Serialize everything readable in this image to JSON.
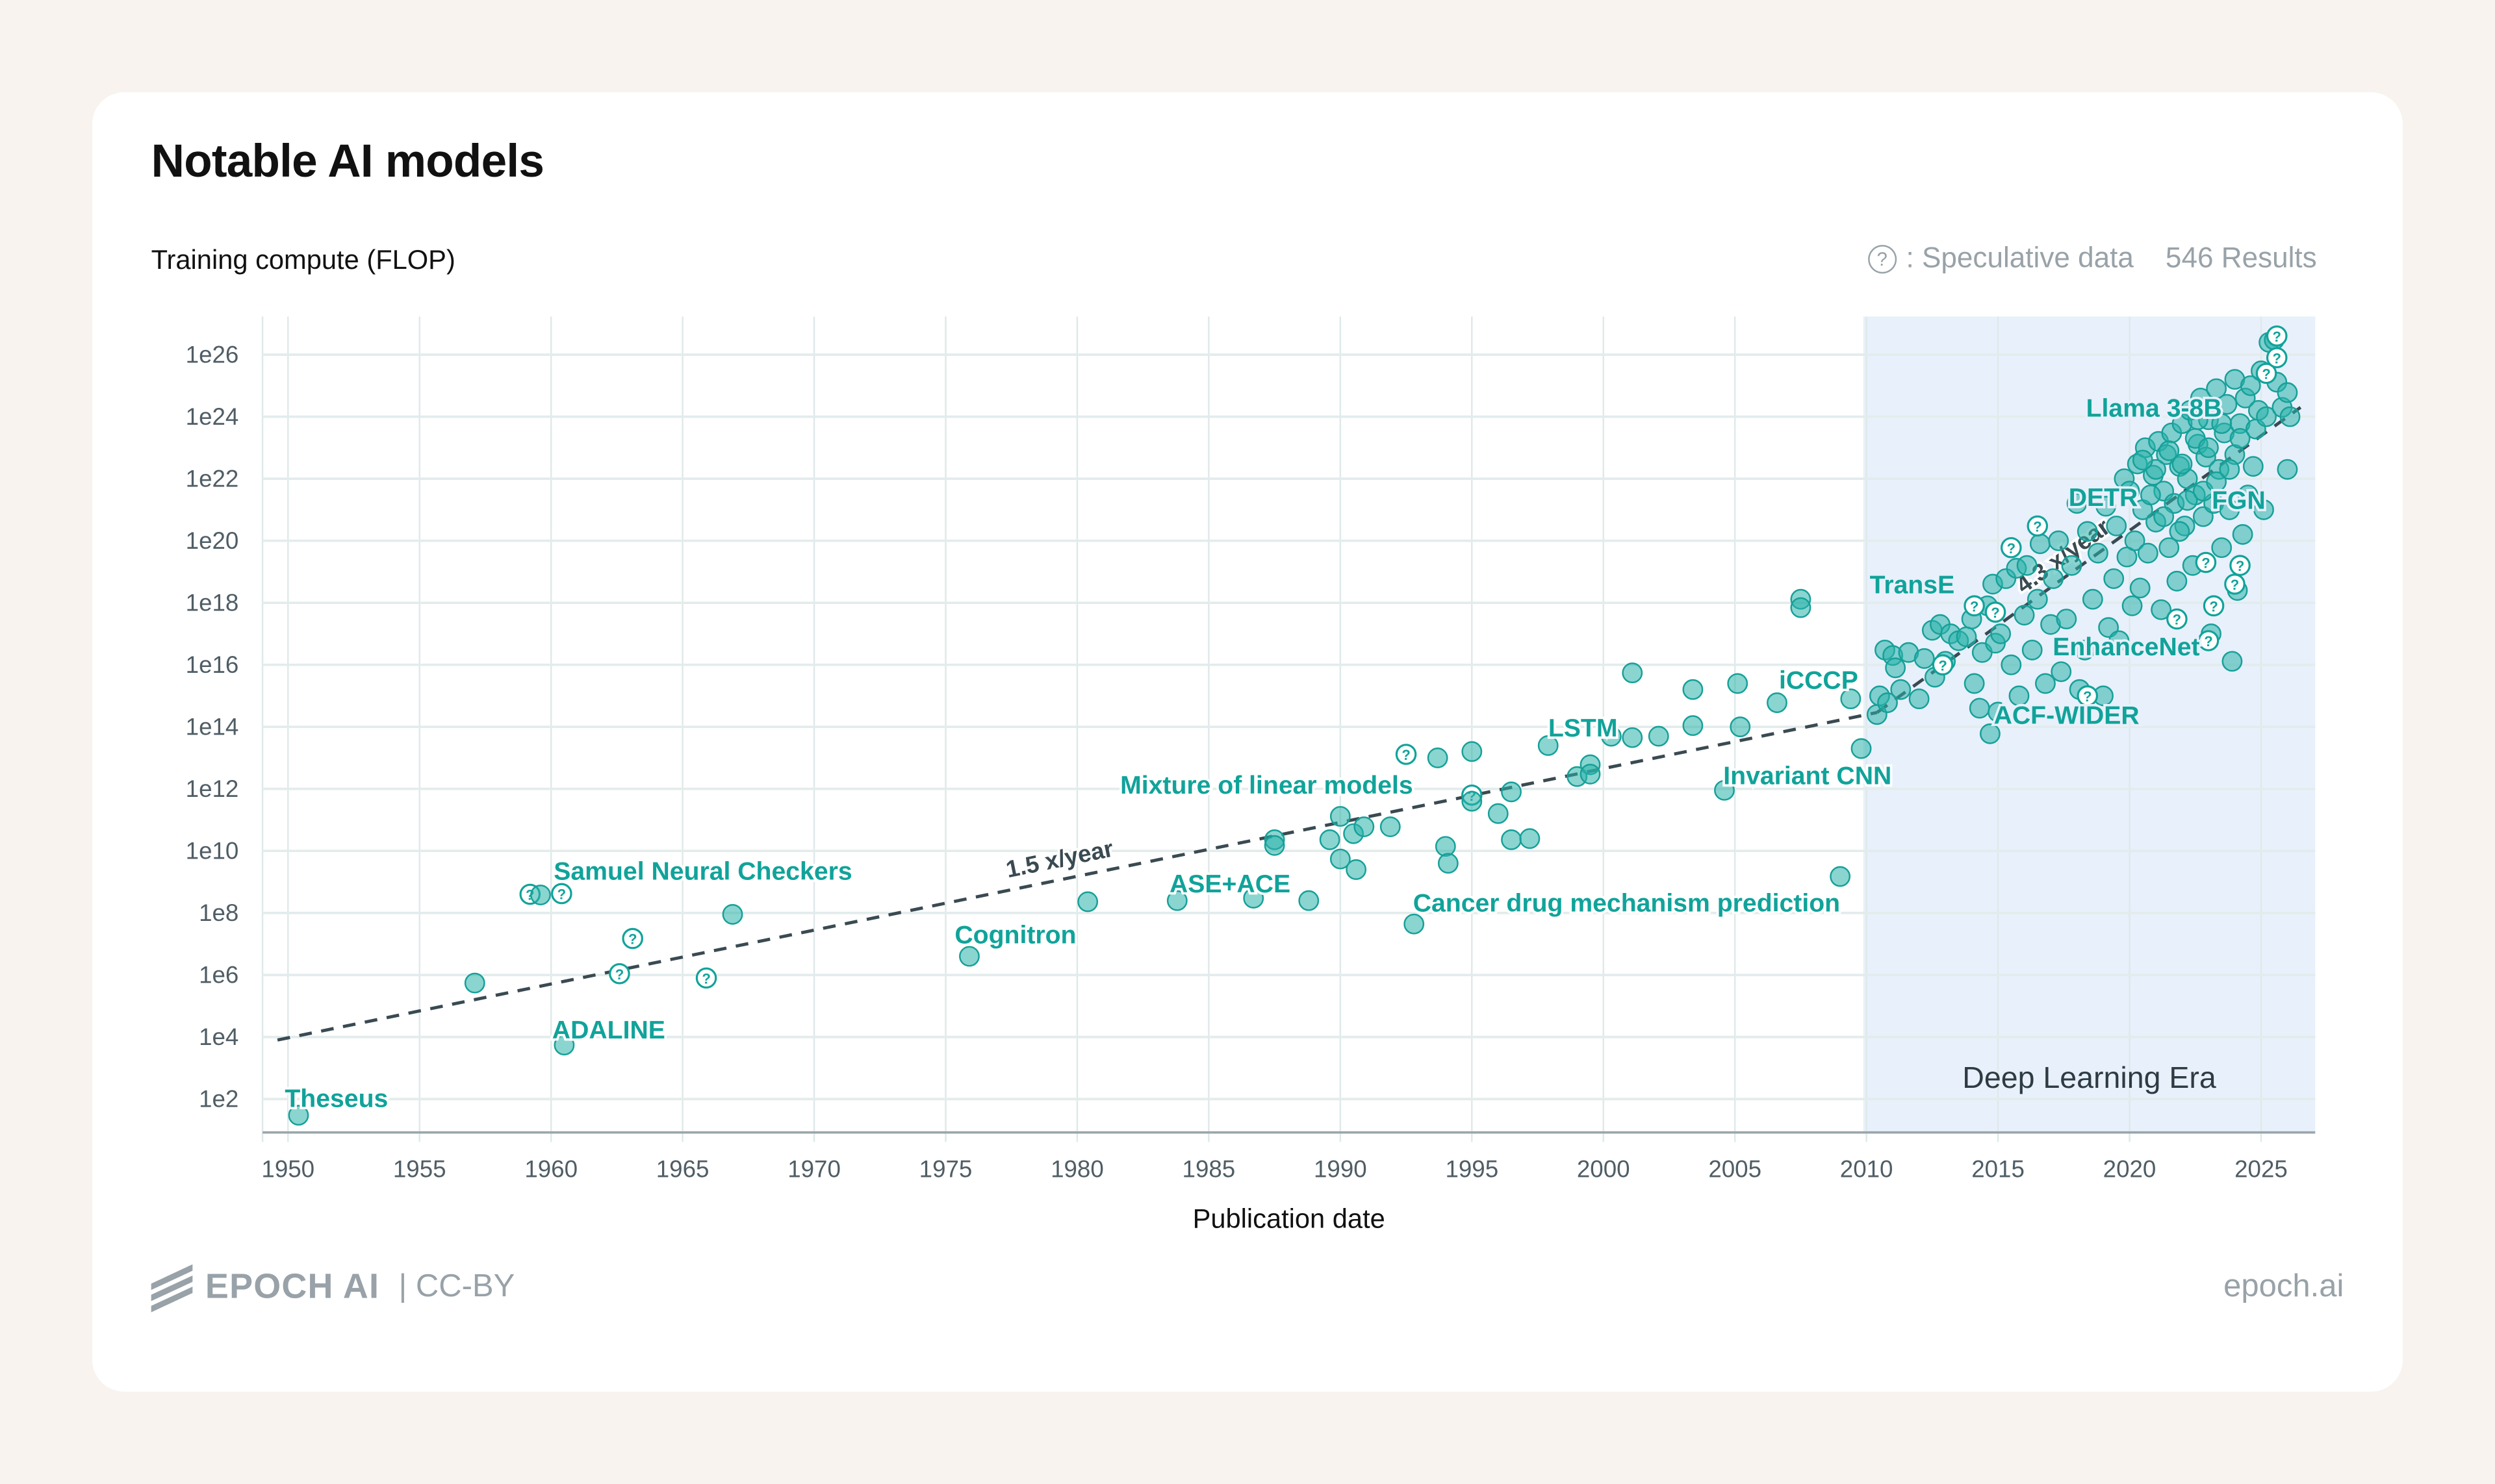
{
  "title": "Notable AI models",
  "y_axis_label": "Training compute (FLOP)",
  "legend": {
    "speculative_icon": "question-circle-icon",
    "speculative_label": ": Speculative data",
    "results": "546 Results"
  },
  "footer": {
    "brand": "EPOCH AI",
    "license": "| CC-BY",
    "site": "epoch.ai"
  },
  "colors": {
    "point": "#2ab2aa",
    "label": "#10a39a",
    "era_shade": "#e8f0fb",
    "trend": "#3a4a52",
    "background": "#f8f3ee"
  },
  "chart_data": {
    "type": "scatter",
    "xlabel": "Publication date",
    "ylabel": "Training compute (FLOP)",
    "yscale": "log",
    "xlim": [
      1949,
      2027
    ],
    "ylim": [
      10.0,
      1e+27
    ],
    "grid": true,
    "x_ticks": [
      "1950",
      "1955",
      "1960",
      "1965",
      "1970",
      "1975",
      "1980",
      "1985",
      "1990",
      "1995",
      "2000",
      "2005",
      "2010",
      "2015",
      "2020",
      "2025"
    ],
    "y_ticks": [
      "1e2",
      "1e4",
      "1e6",
      "1e8",
      "1e10",
      "1e12",
      "1e14",
      "1e16",
      "1e18",
      "1e20",
      "1e22",
      "1e24",
      "1e26"
    ],
    "era": {
      "label": "Deep Learning Era",
      "start": 2010,
      "end": 2027
    },
    "trends": [
      {
        "label": "1.5 x/year",
        "start": [
          1949.6,
          8000.0
        ],
        "end": [
          2010.4,
          290000000000000.0
        ]
      },
      {
        "label": "4.3 x/year",
        "start": [
          2010.4,
          290000000000000.0
        ],
        "end": [
          2026.5,
          2e+24
        ]
      }
    ],
    "annotations": [
      "Theseus",
      "ADALINE",
      "Samuel Neural Checkers",
      "Cognitron",
      "ASE+ACE",
      "Mixture of linear models",
      "Cancer drug mechanism prediction",
      "LSTM",
      "Invariant CNN",
      "iCCCP",
      "TransE",
      "ACF-WIDER",
      "EnhanceNet",
      "DETR",
      "FGN",
      "Llama 3-8B"
    ],
    "points": [
      [
        1950.4,
        30.0,
        0
      ],
      [
        1957.1,
        550000.0,
        0
      ],
      [
        1959.2,
        400000000.0,
        1
      ],
      [
        1959.6,
        380000000.0,
        0
      ],
      [
        1960.4,
        420000000.0,
        1
      ],
      [
        1960.5,
        5500.0,
        0
      ],
      [
        1962.6,
        1100000.0,
        1
      ],
      [
        1963.1,
        15000000.0,
        1
      ],
      [
        1965.9,
        800000.0,
        1
      ],
      [
        1966.9,
        90000000.0,
        0
      ],
      [
        1975.9,
        4000000.0,
        0
      ],
      [
        1980.4,
        230000000.0,
        0
      ],
      [
        1983.8,
        250000000.0,
        0
      ],
      [
        1986.7,
        300000000.0,
        0
      ],
      [
        1987.5,
        23000000000.0,
        0
      ],
      [
        1987.5,
        15000000000.0,
        0
      ],
      [
        1988.8,
        250000000.0,
        0
      ],
      [
        1989.6,
        23000000000.0,
        0
      ],
      [
        1990.0,
        130000000000.0,
        0
      ],
      [
        1990.0,
        5500000000.0,
        0
      ],
      [
        1990.6,
        2500000000.0,
        0
      ],
      [
        1990.5,
        36000000000.0,
        0
      ],
      [
        1990.9,
        60000000000.0,
        0
      ],
      [
        1991.9,
        60000000000.0,
        0
      ],
      [
        1992.5,
        13000000000000.0,
        1
      ],
      [
        1993.7,
        10000000000000.0,
        0
      ],
      [
        1994.0,
        14000000000.0,
        0
      ],
      [
        1994.1,
        4000000000.0,
        0
      ],
      [
        1992.8,
        44000000.0,
        0
      ],
      [
        1995.0,
        16000000000000.0,
        0
      ],
      [
        1995.0,
        630000000000.0,
        1
      ],
      [
        1995.0,
        400000000000.0,
        0
      ],
      [
        1996.0,
        160000000000.0,
        0
      ],
      [
        1996.5,
        800000000000.0,
        0
      ],
      [
        1996.5,
        23000000000.0,
        0
      ],
      [
        1997.2,
        25000000000.0,
        0
      ],
      [
        1997.9,
        25000000000000.0,
        0
      ],
      [
        1999.0,
        2500000000000.0,
        0
      ],
      [
        1999.5,
        6000000000000.0,
        0
      ],
      [
        1999.5,
        3000000000000.0,
        0
      ],
      [
        2000.3,
        50000000000000.0,
        0
      ],
      [
        2001.1,
        5500000000000000.0,
        0
      ],
      [
        2001.1,
        45000000000000.0,
        0
      ],
      [
        2002.1,
        50000000000000.0,
        0
      ],
      [
        2003.4,
        1600000000000000.0,
        0
      ],
      [
        2003.4,
        110000000000000.0,
        0
      ],
      [
        2004.6,
        900000000000.0,
        0
      ],
      [
        2005.1,
        2500000000000000.0,
        0
      ],
      [
        2005.2,
        100000000000000.0,
        0
      ],
      [
        2006.6,
        600000000000000.0,
        0
      ],
      [
        2007.5,
        1.3e+18,
        0
      ],
      [
        2007.5,
        7e+17,
        0
      ],
      [
        2009.0,
        1500000000.0,
        0
      ],
      [
        2009.4,
        800000000000000.0,
        0
      ],
      [
        2009.8,
        20000000000000.0,
        0
      ],
      [
        2010.4,
        250000000000000.0,
        0
      ],
      [
        2010.5,
        1000000000000000.0,
        0
      ],
      [
        2010.7,
        3e+16,
        0
      ],
      [
        2010.8,
        600000000000000.0,
        0
      ],
      [
        2011.0,
        2e+16,
        0
      ],
      [
        2011.1,
        8000000000000000.0,
        0
      ],
      [
        2011.3,
        1600000000000000.0,
        0
      ],
      [
        2011.6,
        2.5e+16,
        0
      ],
      [
        2012.0,
        800000000000000.0,
        0
      ],
      [
        2012.2,
        1.6e+16,
        0
      ],
      [
        2012.5,
        1.3e+17,
        0
      ],
      [
        2012.6,
        4000000000000000.0,
        0
      ],
      [
        2012.8,
        2e+17,
        0
      ],
      [
        2013.0,
        1.3e+16,
        0
      ],
      [
        2013.2,
        1e+17,
        0
      ],
      [
        2013.5,
        6e+16,
        0
      ],
      [
        2013.8,
        8e+16,
        0
      ],
      [
        2014.0,
        3e+17,
        0
      ],
      [
        2014.1,
        2500000000000000.0,
        0
      ],
      [
        2014.3,
        400000000000000.0,
        0
      ],
      [
        2014.4,
        2.5e+16,
        0
      ],
      [
        2014.6,
        8e+17,
        0
      ],
      [
        2014.7,
        60000000000000.0,
        0
      ],
      [
        2014.8,
        4e+18,
        0
      ],
      [
        2014.9,
        5e+16,
        0
      ],
      [
        2015.0,
        300000000000000.0,
        0
      ],
      [
        2015.1,
        1e+17,
        0
      ],
      [
        2015.3,
        6e+18,
        0
      ],
      [
        2015.5,
        1e+16,
        0
      ],
      [
        2015.7,
        1.3e+19,
        0
      ],
      [
        2015.8,
        1000000000000000.0,
        0
      ],
      [
        2016.0,
        4e+17,
        0
      ],
      [
        2016.1,
        1.6e+19,
        0
      ],
      [
        2016.3,
        3e+16,
        0
      ],
      [
        2016.5,
        1.3e+18,
        0
      ],
      [
        2016.6,
        8e+19,
        0
      ],
      [
        2016.8,
        2500000000000000.0,
        0
      ],
      [
        2017.0,
        2e+17,
        0
      ],
      [
        2017.1,
        6e+18,
        0
      ],
      [
        2017.3,
        1e+20,
        0
      ],
      [
        2017.4,
        6000000000000000.0,
        0
      ],
      [
        2017.6,
        3e+17,
        0
      ],
      [
        2017.8,
        1.6e+19,
        0
      ],
      [
        2018.0,
        1.6e+21,
        0
      ],
      [
        2018.1,
        1600000000000000.0,
        0
      ],
      [
        2018.3,
        3e+16,
        0
      ],
      [
        2018.4,
        2e+20,
        0
      ],
      [
        2018.6,
        1.3e+18,
        0
      ],
      [
        2018.8,
        4e+19,
        0
      ],
      [
        2019.0,
        1000000000000000.0,
        0
      ],
      [
        2019.1,
        1.3e+21,
        0
      ],
      [
        2019.2,
        1.6e+17,
        0
      ],
      [
        2019.4,
        6e+18,
        0
      ],
      [
        2019.5,
        3e+20,
        0
      ],
      [
        2019.6,
        6e+16,
        0
      ],
      [
        2019.8,
        1e+22,
        0
      ],
      [
        2019.9,
        3e+19,
        0
      ],
      [
        2020.0,
        4e+21,
        0
      ],
      [
        2020.1,
        8e+17,
        0
      ],
      [
        2020.2,
        1e+20,
        0
      ],
      [
        2020.3,
        3e+22,
        0
      ],
      [
        2020.4,
        3e+18,
        0
      ],
      [
        2020.5,
        1e+21,
        0
      ],
      [
        2020.6,
        1e+23,
        0
      ],
      [
        2020.7,
        4e+19,
        0
      ],
      [
        2020.9,
        1.3e+22,
        0
      ],
      [
        2021.0,
        4e+20,
        0
      ],
      [
        2021.1,
        1.6e+23,
        0
      ],
      [
        2021.2,
        6e+17,
        0
      ],
      [
        2021.3,
        4e+21,
        0
      ],
      [
        2021.4,
        6e+22,
        0
      ],
      [
        2021.5,
        6e+19,
        0
      ],
      [
        2021.6,
        3e+23,
        0
      ],
      [
        2021.7,
        1.6e+21,
        0
      ],
      [
        2021.8,
        5e+18,
        0
      ],
      [
        2021.9,
        2.5e+22,
        0
      ],
      [
        2022.0,
        6e+23,
        0
      ],
      [
        2022.1,
        3e+20,
        0
      ],
      [
        2022.2,
        1e+22,
        0
      ],
      [
        2022.3,
        1.6e+24,
        0
      ],
      [
        2022.4,
        1.6e+19,
        0
      ],
      [
        2022.5,
        3e+21,
        0
      ],
      [
        2022.6,
        1.3e+23,
        0
      ],
      [
        2022.7,
        4e+24,
        0
      ],
      [
        2022.8,
        6e+20,
        0
      ],
      [
        2022.9,
        5e+22,
        0
      ],
      [
        2023.0,
        8e+23,
        0
      ],
      [
        2023.1,
        1e+17,
        0
      ],
      [
        2023.2,
        1.6e+21,
        0
      ],
      [
        2023.3,
        8e+24,
        0
      ],
      [
        2023.4,
        2e+22,
        0
      ],
      [
        2023.5,
        6e+19,
        0
      ],
      [
        2023.6,
        3e+23,
        0
      ],
      [
        2023.7,
        2.5e+24,
        0
      ],
      [
        2023.8,
        1e+21,
        0
      ],
      [
        2023.9,
        1.3e+16,
        0
      ],
      [
        2024.0,
        6e+22,
        0
      ],
      [
        2024.0,
        1.6e+25,
        0
      ],
      [
        2024.1,
        2.5e+18,
        0
      ],
      [
        2024.2,
        6e+23,
        0
      ],
      [
        2024.3,
        1.6e+20,
        0
      ],
      [
        2024.4,
        4e+24,
        0
      ],
      [
        2024.5,
        3e+21,
        0
      ],
      [
        2024.6,
        1e+25,
        0
      ],
      [
        2024.7,
        2.5e+22,
        0
      ],
      [
        2024.8,
        4e+23,
        0
      ],
      [
        2024.9,
        1.6e+24,
        0
      ],
      [
        2025.0,
        3e+25,
        0
      ],
      [
        2025.1,
        1e+21,
        0
      ],
      [
        2025.2,
        1e+24,
        0
      ],
      [
        2025.3,
        2.5e+26,
        0
      ],
      [
        2025.5,
        3e+26,
        0
      ],
      [
        2025.6,
        1.3e+25,
        0
      ],
      [
        2025.8,
        2e+24,
        0
      ],
      [
        2026.0,
        6e+24,
        0
      ],
      [
        2026.0,
        2e+22,
        0
      ],
      [
        2026.1,
        1e+24,
        0
      ],
      [
        2021.0,
        2e+22,
        0
      ],
      [
        2021.5,
        8e+22,
        0
      ],
      [
        2022.0,
        3e+22,
        0
      ],
      [
        2022.5,
        2e+23,
        0
      ],
      [
        2023.0,
        1e+23,
        0
      ],
      [
        2023.5,
        6e+23,
        0
      ],
      [
        2020.8,
        3e+21,
        0
      ],
      [
        2021.3,
        6e+20,
        0
      ],
      [
        2022.2,
        2e+21,
        0
      ],
      [
        2022.8,
        4e+21,
        0
      ],
      [
        2023.3,
        8e+21,
        0
      ],
      [
        2024.2,
        2e+23,
        0
      ],
      [
        2021.9,
        2e+20,
        0
      ],
      [
        2023.8,
        2e+22,
        0
      ],
      [
        2020.5,
        4e+22,
        0
      ],
      [
        2022.6,
        8e+23,
        0
      ],
      [
        2012.9,
        1e+16,
        1
      ],
      [
        2014.1,
        8e+17,
        1
      ],
      [
        2014.9,
        5e+17,
        1
      ],
      [
        2015.5,
        6e+19,
        1
      ],
      [
        2016.5,
        3e+20,
        1
      ],
      [
        2018.4,
        1000000000000000.0,
        1
      ],
      [
        2023.0,
        6e+16,
        1
      ],
      [
        2023.2,
        8e+17,
        1
      ],
      [
        2024.0,
        4e+18,
        1
      ],
      [
        2024.2,
        1.6e+19,
        1
      ],
      [
        2025.2,
        2.5e+25,
        1
      ],
      [
        2025.6,
        4e+26,
        1
      ],
      [
        2025.6,
        8e+25,
        1
      ],
      [
        2021.8,
        3e+17,
        1
      ],
      [
        2022.9,
        2e+19,
        1
      ]
    ]
  }
}
